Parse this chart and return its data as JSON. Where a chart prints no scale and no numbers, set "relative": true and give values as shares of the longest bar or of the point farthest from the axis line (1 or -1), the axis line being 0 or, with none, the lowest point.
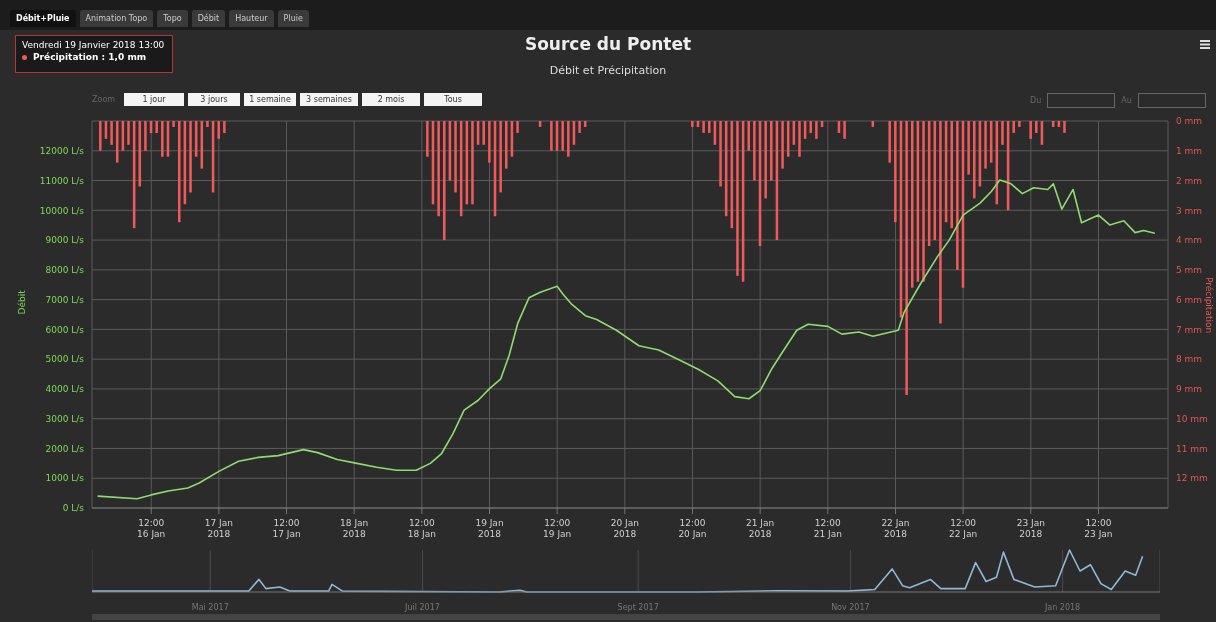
{
  "chart_data": [
    {
      "type": "line",
      "title": "Source du Pontet",
      "subtitle": "Débit et Précipitation",
      "ylabel": "Débit",
      "y2label": "Précipitation",
      "annotations": [
        "Débit+Pluie",
        "Animation Topo",
        "Topo",
        "Débit",
        "Hauteur",
        "Pluie",
        "Vendredi 19 Janvier 2018 13:00",
        "Précipitation : 1,0 mm",
        "Zoom",
        "1 jour",
        "3 jours",
        "1 semaine",
        "3 semaines",
        "2 mois",
        "Tous",
        "Du",
        "Au"
      ],
      "xlim": [
        "2018-01-16T01:30",
        "2018-01-24T00:20"
      ],
      "xticks": [
        {
          "value": "2018-01-16T12:00",
          "label": "12:00\n16 Jan"
        },
        {
          "value": "2018-01-17T00:00",
          "label": "17 Jan\n2018"
        },
        {
          "value": "2018-01-17T12:00",
          "label": "12:00\n17 Jan"
        },
        {
          "value": "2018-01-18T00:00",
          "label": "18 Jan\n2018"
        },
        {
          "value": "2018-01-18T12:00",
          "label": "12:00\n18 Jan"
        },
        {
          "value": "2018-01-19T00:00",
          "label": "19 Jan\n2018"
        },
        {
          "value": "2018-01-19T12:00",
          "label": "12:00\n19 Jan"
        },
        {
          "value": "2018-01-20T00:00",
          "label": "20 Jan\n2018"
        },
        {
          "value": "2018-01-20T12:00",
          "label": "12:00\n20 Jan"
        },
        {
          "value": "2018-01-21T00:00",
          "label": "21 Jan\n2018"
        },
        {
          "value": "2018-01-21T12:00",
          "label": "12:00\n21 Jan"
        },
        {
          "value": "2018-01-22T00:00",
          "label": "22 Jan\n2018"
        },
        {
          "value": "2018-01-22T12:00",
          "label": "12:00\n22 Jan"
        },
        {
          "value": "2018-01-23T00:00",
          "label": "23 Jan\n2018"
        },
        {
          "value": "2018-01-23T12:00",
          "label": "12:00\n23 Jan"
        }
      ],
      "ylim": [
        0,
        13000
      ],
      "yticks": [
        {
          "value": 0,
          "label": "0 L/s"
        },
        {
          "value": 1000,
          "label": "1000 L/s"
        },
        {
          "value": 2000,
          "label": "2000 L/s"
        },
        {
          "value": 3000,
          "label": "3000 L/s"
        },
        {
          "value": 4000,
          "label": "4000 L/s"
        },
        {
          "value": 5000,
          "label": "5000 L/s"
        },
        {
          "value": 6000,
          "label": "6000 L/s"
        },
        {
          "value": 7000,
          "label": "7000 L/s"
        },
        {
          "value": 8000,
          "label": "8000 L/s"
        },
        {
          "value": 9000,
          "label": "9000 L/s"
        },
        {
          "value": 10000,
          "label": "10000 L/s"
        },
        {
          "value": 11000,
          "label": "11000 L/s"
        },
        {
          "value": 12000,
          "label": "12000 L/s"
        }
      ],
      "y2lim": [
        13,
        0
      ],
      "y2ticks": [
        {
          "value": 0,
          "label": "0 mm"
        },
        {
          "value": 1,
          "label": "1 mm"
        },
        {
          "value": 2,
          "label": "2 mm"
        },
        {
          "value": 3,
          "label": "3 mm"
        },
        {
          "value": 4,
          "label": "4 mm"
        },
        {
          "value": 5,
          "label": "5 mm"
        },
        {
          "value": 6,
          "label": "6 mm"
        },
        {
          "value": 7,
          "label": "7 mm"
        },
        {
          "value": 8,
          "label": "8 mm"
        },
        {
          "value": 9,
          "label": "9 mm"
        },
        {
          "value": 10,
          "label": "10 mm"
        },
        {
          "value": 11,
          "label": "11 mm"
        },
        {
          "value": 12,
          "label": "12 mm"
        }
      ],
      "grid": true,
      "series": [
        {
          "type": "bar",
          "axis": "y2",
          "color": "#f05a5a",
          "x": [
            "2018-01-16T03:00",
            "2018-01-16T04:00",
            "2018-01-16T05:00",
            "2018-01-16T06:00",
            "2018-01-16T07:00",
            "2018-01-16T08:00",
            "2018-01-16T09:00",
            "2018-01-16T10:00",
            "2018-01-16T11:00",
            "2018-01-16T12:00",
            "2018-01-16T13:00",
            "2018-01-16T14:00",
            "2018-01-16T15:00",
            "2018-01-16T16:00",
            "2018-01-16T17:00",
            "2018-01-16T18:00",
            "2018-01-16T19:00",
            "2018-01-16T20:00",
            "2018-01-16T21:00",
            "2018-01-16T22:00",
            "2018-01-16T23:00",
            "2018-01-17T00:00",
            "2018-01-17T01:00",
            "2018-01-18T13:00",
            "2018-01-18T14:00",
            "2018-01-18T15:00",
            "2018-01-18T16:00",
            "2018-01-18T17:00",
            "2018-01-18T18:00",
            "2018-01-18T19:00",
            "2018-01-18T20:00",
            "2018-01-18T21:00",
            "2018-01-18T22:00",
            "2018-01-18T23:00",
            "2018-01-19T00:00",
            "2018-01-19T01:00",
            "2018-01-19T02:00",
            "2018-01-19T03:00",
            "2018-01-19T04:00",
            "2018-01-19T05:00",
            "2018-01-19T09:00",
            "2018-01-19T11:00",
            "2018-01-19T12:00",
            "2018-01-19T13:00",
            "2018-01-19T14:00",
            "2018-01-19T15:00",
            "2018-01-19T16:00",
            "2018-01-19T17:00",
            "2018-01-20T12:00",
            "2018-01-20T13:00",
            "2018-01-20T14:00",
            "2018-01-20T15:00",
            "2018-01-20T16:00",
            "2018-01-20T17:00",
            "2018-01-20T18:00",
            "2018-01-20T19:00",
            "2018-01-20T20:00",
            "2018-01-20T21:00",
            "2018-01-20T22:00",
            "2018-01-20T23:00",
            "2018-01-21T00:00",
            "2018-01-21T01:00",
            "2018-01-21T02:00",
            "2018-01-21T03:00",
            "2018-01-21T04:00",
            "2018-01-21T05:00",
            "2018-01-21T06:00",
            "2018-01-21T07:00",
            "2018-01-21T08:00",
            "2018-01-21T09:00",
            "2018-01-21T10:00",
            "2018-01-21T11:00",
            "2018-01-21T14:00",
            "2018-01-21T15:00",
            "2018-01-21T20:00",
            "2018-01-21T23:00",
            "2018-01-22T00:00",
            "2018-01-22T01:00",
            "2018-01-22T02:00",
            "2018-01-22T03:00",
            "2018-01-22T04:00",
            "2018-01-22T05:00",
            "2018-01-22T06:00",
            "2018-01-22T07:00",
            "2018-01-22T08:00",
            "2018-01-22T09:00",
            "2018-01-22T10:00",
            "2018-01-22T11:00",
            "2018-01-22T12:00",
            "2018-01-22T13:00",
            "2018-01-22T14:00",
            "2018-01-22T15:00",
            "2018-01-22T16:00",
            "2018-01-22T17:00",
            "2018-01-22T18:00",
            "2018-01-22T19:00",
            "2018-01-22T20:00",
            "2018-01-22T21:00",
            "2018-01-22T22:00",
            "2018-01-23T00:00",
            "2018-01-23T01:00",
            "2018-01-23T02:00",
            "2018-01-23T04:00",
            "2018-01-23T05:00",
            "2018-01-23T06:00"
          ],
          "values": [
            1.0,
            0.6,
            0.8,
            1.4,
            1.0,
            0.8,
            3.6,
            2.2,
            1.0,
            0.4,
            0.4,
            1.2,
            1.2,
            0.2,
            3.4,
            2.8,
            2.4,
            1.2,
            1.6,
            0.2,
            2.4,
            0.6,
            0.4,
            1.2,
            2.8,
            3.2,
            4.0,
            2.0,
            2.4,
            3.2,
            2.8,
            2.8,
            0.8,
            0.8,
            1.4,
            3.2,
            2.4,
            1.6,
            1.2,
            0.4,
            0.2,
            1.0,
            1.0,
            1.0,
            1.2,
            0.8,
            0.4,
            0.2,
            0.2,
            0.2,
            0.4,
            0.4,
            0.8,
            2.2,
            3.2,
            3.6,
            5.2,
            5.4,
            1.0,
            2.0,
            4.2,
            2.6,
            2.0,
            4.0,
            1.6,
            1.2,
            0.8,
            1.2,
            0.6,
            0.4,
            0.6,
            0.2,
            0.4,
            0.6,
            0.2,
            1.4,
            3.4,
            6.6,
            9.2,
            5.6,
            5.4,
            5.4,
            4.2,
            4.0,
            6.8,
            3.4,
            3.6,
            5.0,
            5.6,
            1.8,
            2.6,
            2.2,
            1.6,
            1.4,
            2.8,
            0.8,
            3.0,
            0.4,
            0.2,
            0.6,
            0.4,
            0.8,
            0.2,
            0.2,
            0.4
          ]
        },
        {
          "type": "line",
          "color": "#8fdc6e",
          "x": [
            "2018-01-16T02:30",
            "2018-01-16T09:30",
            "2018-01-16T12:00",
            "2018-01-16T15:00",
            "2018-01-16T18:30",
            "2018-01-16T20:30",
            "2018-01-17T00:00",
            "2018-01-17T03:30",
            "2018-01-17T07:00",
            "2018-01-17T10:30",
            "2018-01-17T15:00",
            "2018-01-17T17:30",
            "2018-01-17T21:00",
            "2018-01-18T00:30",
            "2018-01-18T04:00",
            "2018-01-18T07:30",
            "2018-01-18T11:00",
            "2018-01-18T13:30",
            "2018-01-18T15:30",
            "2018-01-18T17:30",
            "2018-01-18T19:30",
            "2018-01-18T22:00",
            "2018-01-19T00:00",
            "2018-01-19T02:00",
            "2018-01-19T03:30",
            "2018-01-19T05:00",
            "2018-01-19T07:00",
            "2018-01-19T09:00",
            "2018-01-19T12:00",
            "2018-01-19T13:00",
            "2018-01-19T14:30",
            "2018-01-19T17:00",
            "2018-01-19T19:00",
            "2018-01-19T22:30",
            "2018-01-20T02:30",
            "2018-01-20T06:00",
            "2018-01-20T09:30",
            "2018-01-20T13:00",
            "2018-01-20T16:30",
            "2018-01-20T19:30",
            "2018-01-20T22:00",
            "2018-01-21T00:00",
            "2018-01-21T02:00",
            "2018-01-21T04:00",
            "2018-01-21T06:30",
            "2018-01-21T08:30",
            "2018-01-21T12:00",
            "2018-01-21T14:30",
            "2018-01-21T17:30",
            "2018-01-21T20:00",
            "2018-01-22T00:30",
            "2018-01-22T01:30",
            "2018-01-22T04:30",
            "2018-01-22T07:30",
            "2018-01-22T09:30",
            "2018-01-22T12:00",
            "2018-01-22T15:00",
            "2018-01-22T17:00",
            "2018-01-22T18:30",
            "2018-01-22T20:30",
            "2018-01-22T22:30",
            "2018-01-23T00:30",
            "2018-01-23T03:00",
            "2018-01-23T04:00",
            "2018-01-23T05:30",
            "2018-01-23T07:30",
            "2018-01-23T09:00",
            "2018-01-23T12:00",
            "2018-01-23T14:00",
            "2018-01-23T16:30",
            "2018-01-23T18:30",
            "2018-01-23T20:00",
            "2018-01-23T22:00"
          ],
          "values": [
            400,
            310,
            440,
            570,
            670,
            840,
            1230,
            1570,
            1700,
            1760,
            1960,
            1860,
            1630,
            1500,
            1370,
            1270,
            1270,
            1500,
            1830,
            2490,
            3290,
            3620,
            4010,
            4340,
            5140,
            6200,
            7060,
            7250,
            7450,
            7190,
            6860,
            6460,
            6330,
            5970,
            5450,
            5310,
            4990,
            4660,
            4270,
            3740,
            3670,
            3940,
            4660,
            5250,
            5970,
            6170,
            6100,
            5840,
            5910,
            5770,
            5970,
            6560,
            7550,
            8460,
            8990,
            9840,
            10240,
            10630,
            11020,
            10890,
            10560,
            10760,
            10700,
            10890,
            10040,
            10700,
            9580,
            9840,
            9510,
            9650,
            9250,
            9320,
            9230
          ]
        }
      ]
    },
    {
      "type": "line",
      "relative": true,
      "tick_labels": "x",
      "grid": "x",
      "xlim": [
        "2017-03-28",
        "2018-01-29"
      ],
      "xticks": [
        {
          "value": "2017-05-01",
          "label": "Mai 2017"
        },
        {
          "value": "2017-07-01",
          "label": "Juil 2017"
        },
        {
          "value": "2017-09-01",
          "label": "Sept 2017"
        },
        {
          "value": "2017-11-01",
          "label": "Nov 2017"
        },
        {
          "value": "2018-01-01",
          "label": "Jan 2018"
        }
      ],
      "series": [
        {
          "color": "#8fb8d6",
          "x": [
            "2017-03-28",
            "2017-05-12",
            "2017-05-15",
            "2017-05-17",
            "2017-05-21",
            "2017-05-24",
            "2017-06-04",
            "2017-06-05",
            "2017-06-08",
            "2017-07-23",
            "2017-07-29",
            "2017-07-31",
            "2017-09-18",
            "2017-10-11",
            "2017-10-31",
            "2017-11-08",
            "2017-11-13",
            "2017-11-16",
            "2017-11-18",
            "2017-11-24",
            "2017-11-27",
            "2017-12-04",
            "2017-12-07",
            "2017-12-10",
            "2017-12-13",
            "2017-12-15",
            "2017-12-18",
            "2017-12-24",
            "2017-12-30",
            "2018-01-03",
            "2018-01-06",
            "2018-01-09",
            "2018-01-12",
            "2018-01-15",
            "2018-01-19",
            "2018-01-22",
            "2018-01-24"
          ],
          "values": [
            0.02,
            0.02,
            0.3,
            0.08,
            0.12,
            0.02,
            0.02,
            0.18,
            0.02,
            0,
            0.04,
            0,
            0,
            0.03,
            0.02,
            0.06,
            0.55,
            0.15,
            0.1,
            0.3,
            0.08,
            0.08,
            0.7,
            0.25,
            0.35,
            0.95,
            0.3,
            0.12,
            0.15,
            1.0,
            0.5,
            0.65,
            0.2,
            0.06,
            0.5,
            0.4,
            0.85
          ]
        }
      ]
    }
  ]
}
